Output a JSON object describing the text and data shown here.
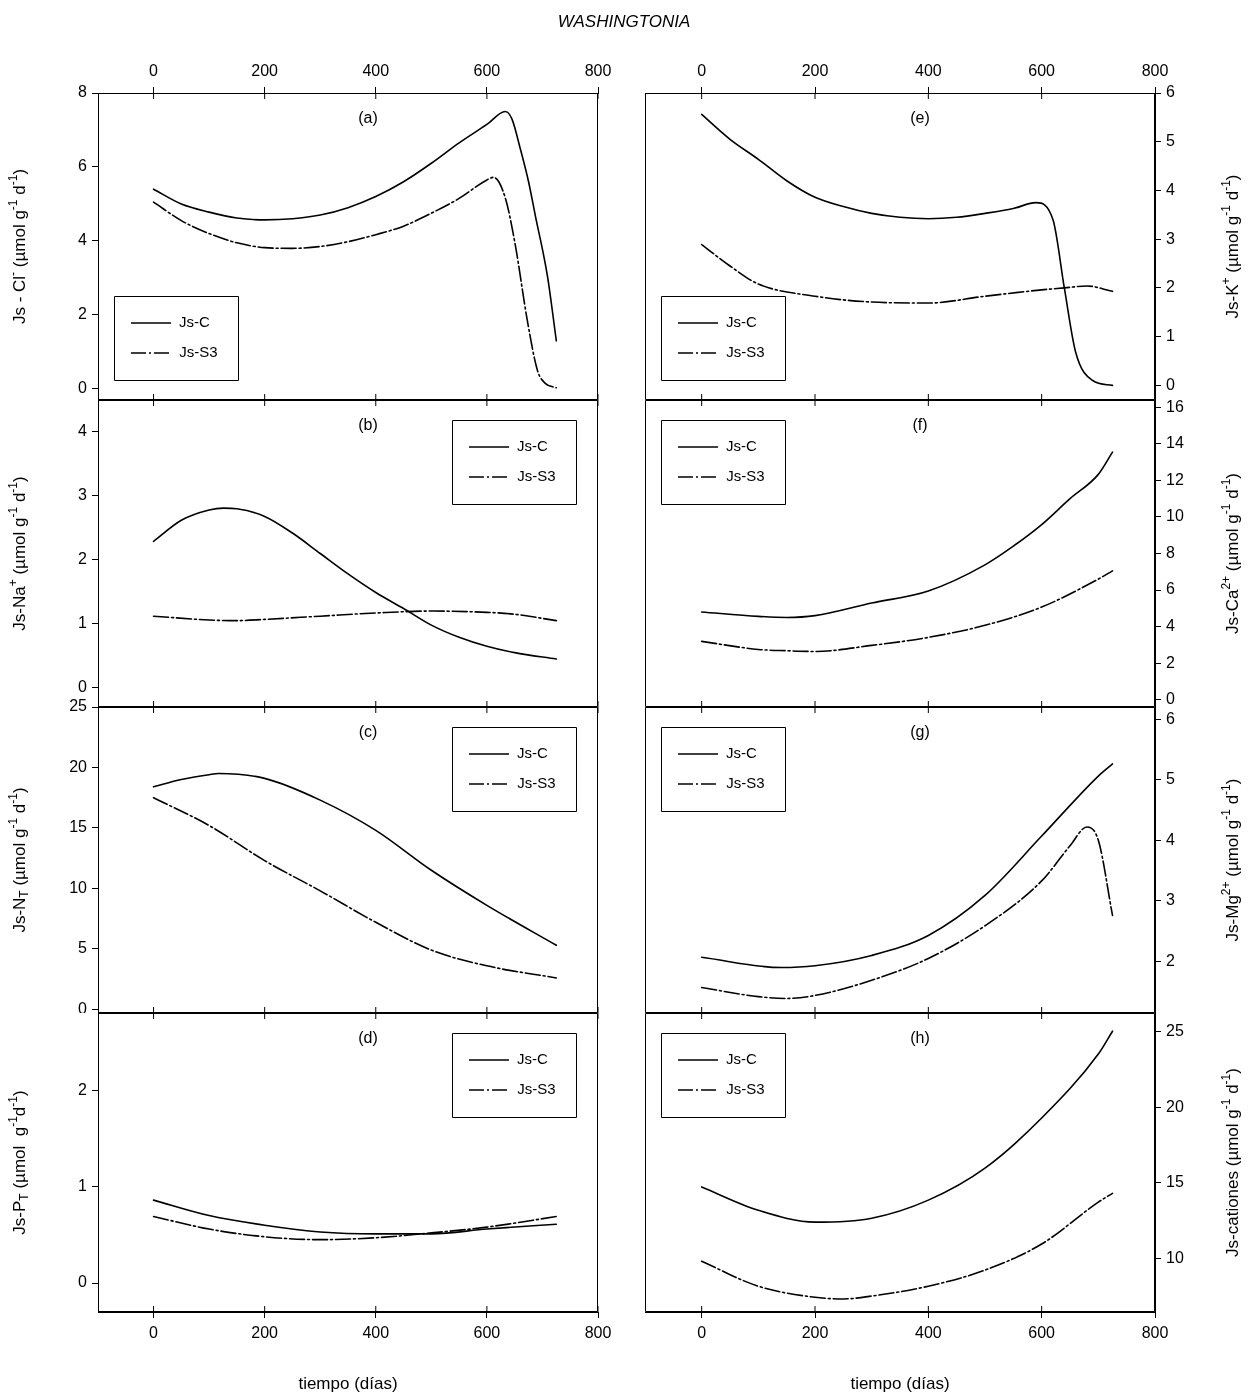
{
  "chart_data": [
    {
      "type": "line",
      "title": "WASHINGTONIA",
      "ylabel": "Js - Cl$^{-}$ (µmol g$^{-1}$ d$^{-1}$)",
      "annotations": [
        "(a)"
      ],
      "xlim": [
        -100,
        800
      ],
      "xticks": [
        0,
        200,
        400,
        600,
        800
      ],
      "x2lim": [
        -100,
        800
      ],
      "x2ticks": [
        0,
        200,
        400,
        600,
        800
      ],
      "tick_labels": "y",
      "ylim": [
        -0.3,
        8
      ],
      "yticks": [
        0,
        2,
        4,
        6,
        8
      ],
      "legend": "bottom left",
      "marker": "none",
      "series": [
        {
          "name": "Js-C",
          "color": "#000000",
          "line_style": "solid",
          "x": [
            0,
            50,
            100,
            150,
            200,
            250,
            300,
            350,
            400,
            450,
            500,
            550,
            600,
            633,
            645,
            660,
            675,
            687,
            709,
            725
          ],
          "values": [
            5.4,
            5.0,
            4.78,
            4.62,
            4.57,
            4.6,
            4.7,
            4.9,
            5.2,
            5.6,
            6.1,
            6.65,
            7.15,
            7.5,
            7.3,
            6.5,
            5.6,
            4.7,
            3.05,
            1.3
          ]
        },
        {
          "name": "Js-S3",
          "color": "#000000",
          "line_style": "dashdot",
          "x": [
            0,
            50,
            100,
            150,
            200,
            250,
            300,
            350,
            400,
            450,
            500,
            550,
            600,
            612,
            633,
            651,
            673,
            691,
            705,
            725
          ],
          "values": [
            5.05,
            4.55,
            4.2,
            3.95,
            3.82,
            3.8,
            3.85,
            3.98,
            4.17,
            4.4,
            4.75,
            5.15,
            5.65,
            5.72,
            5.17,
            3.9,
            1.83,
            0.5,
            0.15,
            0.03
          ]
        }
      ]
    },
    {
      "type": "line",
      "y2label": "Js-K$^{+}$ (µmol g$^{-1}$ d$^{-1}$)",
      "annotations": [
        "(e)"
      ],
      "xlim": [
        -100,
        800
      ],
      "xticks": [
        0,
        200,
        400,
        600,
        800
      ],
      "x2lim": [
        -100,
        800
      ],
      "x2ticks": [
        0,
        200,
        400,
        600,
        800
      ],
      "tick_labels": "y",
      "y2lim": [
        -0.3,
        6
      ],
      "y2ticks": [
        0,
        1,
        2,
        3,
        4,
        5,
        6
      ],
      "legend": "bottom left",
      "marker": "none",
      "series": [
        {
          "name": "Js-C",
          "color": "#000000",
          "line_style": "solid",
          "axis": "y2",
          "x": [
            0,
            50,
            100,
            150,
            200,
            250,
            300,
            350,
            400,
            450,
            500,
            550,
            590,
            620,
            640,
            660,
            690,
            725
          ],
          "values": [
            5.56,
            5.05,
            4.64,
            4.2,
            3.86,
            3.67,
            3.53,
            3.45,
            3.42,
            3.45,
            3.53,
            3.63,
            3.75,
            3.4,
            2.0,
            0.68,
            0.1,
            0.0
          ]
        },
        {
          "name": "Js-S3",
          "color": "#000000",
          "line_style": "dashdot",
          "axis": "y2",
          "x": [
            0,
            50,
            100,
            200,
            300,
            400,
            500,
            600,
            640,
            680,
            725
          ],
          "values": [
            2.89,
            2.45,
            2.08,
            1.83,
            1.71,
            1.69,
            1.83,
            1.96,
            2.0,
            2.04,
            1.93
          ]
        }
      ]
    },
    {
      "type": "line",
      "ylabel": "Js-Na$^{+}$ (µmol g$^{-1}$ d$^{-1}$)",
      "annotations": [
        "(b)"
      ],
      "xlim": [
        -100,
        800
      ],
      "xticks": [
        0,
        200,
        400,
        600,
        800
      ],
      "ylim": [
        -0.3,
        4.5
      ],
      "yticks": [
        0,
        1,
        2,
        3,
        4
      ],
      "legend": "top right",
      "marker": "none",
      "tick_labels": "y",
      "series": [
        {
          "name": "Js-C",
          "color": "#000000",
          "line_style": "solid",
          "x": [
            0,
            50,
            100,
            126,
            150,
            200,
            250,
            300,
            350,
            400,
            450,
            500,
            550,
            600,
            650,
            725
          ],
          "values": [
            2.29,
            2.62,
            2.78,
            2.81,
            2.8,
            2.68,
            2.42,
            2.1,
            1.78,
            1.49,
            1.24,
            0.98,
            0.79,
            0.65,
            0.55,
            0.45
          ]
        },
        {
          "name": "Js-S3",
          "color": "#000000",
          "line_style": "dashdot",
          "x": [
            0,
            100,
            150,
            200,
            300,
            400,
            500,
            600,
            650,
            725
          ],
          "values": [
            1.12,
            1.06,
            1.05,
            1.07,
            1.12,
            1.17,
            1.2,
            1.18,
            1.15,
            1.05
          ]
        }
      ]
    },
    {
      "type": "line",
      "y2label": "Js-Ca$^{2+}$ (µmol g$^{-1}$ d$^{-1}$)",
      "annotations": [
        "(f)"
      ],
      "xlim": [
        -100,
        800
      ],
      "xticks": [
        0,
        200,
        400,
        600,
        800
      ],
      "y2lim": [
        -0.4,
        16.4
      ],
      "y2ticks": [
        0,
        2,
        4,
        6,
        8,
        10,
        12,
        14,
        16
      ],
      "legend": "top left",
      "marker": "none",
      "tick_labels": "y",
      "series": [
        {
          "name": "Js-C",
          "color": "#000000",
          "line_style": "solid",
          "axis": "y2",
          "x": [
            0,
            100,
            150,
            200,
            300,
            400,
            500,
            550,
            600,
            650,
            700,
            725
          ],
          "values": [
            4.8,
            4.56,
            4.5,
            4.6,
            5.29,
            5.95,
            7.38,
            8.4,
            9.58,
            11.0,
            12.33,
            13.55
          ]
        },
        {
          "name": "Js-S3",
          "color": "#000000",
          "line_style": "dashdot",
          "axis": "y2",
          "x": [
            0,
            100,
            150,
            200,
            300,
            400,
            500,
            600,
            700,
            725
          ],
          "values": [
            3.19,
            2.75,
            2.68,
            2.64,
            2.97,
            3.41,
            4.07,
            5.07,
            6.6,
            7.05
          ]
        }
      ]
    },
    {
      "type": "line",
      "ylabel": "Js-N$_{T}$ (µmol g$^{-1}$ d$^{-1}$)",
      "annotations": [
        "(c)"
      ],
      "xlim": [
        -100,
        800
      ],
      "xticks": [
        0,
        200,
        400,
        600,
        800
      ],
      "ylim": [
        -0.3,
        25
      ],
      "yticks": [
        0,
        5,
        10,
        15,
        20,
        25
      ],
      "legend": "top right",
      "marker": "none",
      "tick_labels": "y",
      "series": [
        {
          "name": "Js-C",
          "color": "#000000",
          "line_style": "solid",
          "x": [
            0,
            50,
            100,
            117,
            200,
            300,
            400,
            500,
            600,
            725
          ],
          "values": [
            18.4,
            19.0,
            19.4,
            19.5,
            19.1,
            17.3,
            14.8,
            11.5,
            8.6,
            5.3
          ]
        },
        {
          "name": "Js-S3",
          "color": "#000000",
          "line_style": "dashdot",
          "x": [
            0,
            100,
            200,
            300,
            400,
            500,
            600,
            725
          ],
          "values": [
            17.5,
            15.2,
            12.3,
            9.8,
            7.2,
            4.9,
            3.6,
            2.6
          ]
        }
      ]
    },
    {
      "type": "line",
      "y2label": "Js-Mg$^{2+}$ (µmol g$^{-1}$ d$^{-1}$)",
      "annotations": [
        "(g)"
      ],
      "xlim": [
        -100,
        800
      ],
      "xticks": [
        0,
        200,
        400,
        600,
        800
      ],
      "y2lim": [
        1.15,
        6.2
      ],
      "y2ticks": [
        2,
        3,
        4,
        5,
        6
      ],
      "legend": "top left",
      "marker": "none",
      "tick_labels": "y",
      "series": [
        {
          "name": "Js-C",
          "color": "#000000",
          "line_style": "solid",
          "axis": "y2",
          "x": [
            0,
            140,
            200,
            300,
            400,
            500,
            600,
            700,
            725
          ],
          "values": [
            2.07,
            1.9,
            1.93,
            2.1,
            2.43,
            3.09,
            4.07,
            5.06,
            5.26
          ]
        },
        {
          "name": "Js-S3",
          "color": "#000000",
          "line_style": "dashdot",
          "axis": "y2",
          "x": [
            0,
            100,
            150,
            200,
            300,
            400,
            500,
            600,
            650,
            680,
            700,
            725
          ],
          "values": [
            1.57,
            1.42,
            1.39,
            1.44,
            1.69,
            2.05,
            2.59,
            3.33,
            3.91,
            4.22,
            4.0,
            2.76
          ]
        }
      ]
    },
    {
      "type": "line",
      "ylabel": "Js-P$_{T}$ (µmol  g$^{-1}$d$^{-1}$)",
      "xlabel": "tiempo (días)",
      "annotations": [
        "(d)"
      ],
      "xlim": [
        -100,
        800
      ],
      "xticks": [
        0,
        200,
        400,
        600,
        800
      ],
      "ylim": [
        -0.3,
        2.8
      ],
      "yticks": [
        0,
        1,
        2
      ],
      "legend": "top right",
      "marker": "none",
      "series": [
        {
          "name": "Js-C",
          "color": "#000000",
          "line_style": "solid",
          "x": [
            0,
            100,
            200,
            300,
            400,
            500,
            600,
            725
          ],
          "values": [
            0.86,
            0.7,
            0.6,
            0.53,
            0.51,
            0.51,
            0.56,
            0.61
          ]
        },
        {
          "name": "Js-S3",
          "color": "#000000",
          "line_style": "dashdot",
          "x": [
            0,
            100,
            200,
            300,
            400,
            500,
            600,
            725
          ],
          "values": [
            0.69,
            0.56,
            0.48,
            0.45,
            0.47,
            0.52,
            0.58,
            0.69
          ]
        }
      ]
    },
    {
      "type": "line",
      "y2label": "Js-cationes (µmol g$^{-1}$ d$^{-1}$)",
      "xlabel": "tiempo (días)",
      "annotations": [
        "(h)"
      ],
      "xlim": [
        -100,
        800
      ],
      "xticks": [
        0,
        200,
        400,
        600,
        800
      ],
      "y2lim": [
        6.5,
        26.2
      ],
      "y2ticks": [
        10,
        15,
        20,
        25
      ],
      "legend": "top left",
      "marker": "none",
      "series": [
        {
          "name": "Js-C",
          "color": "#000000",
          "line_style": "solid",
          "axis": "y2",
          "x": [
            0,
            100,
            200,
            300,
            400,
            500,
            600,
            700,
            725
          ],
          "values": [
            14.74,
            13.2,
            12.42,
            12.68,
            13.87,
            15.98,
            19.28,
            23.5,
            25.0
          ]
        },
        {
          "name": "Js-S3",
          "color": "#000000",
          "line_style": "dashdot",
          "axis": "y2",
          "x": [
            0,
            100,
            200,
            250,
            300,
            400,
            500,
            600,
            700,
            725
          ],
          "values": [
            9.84,
            8.2,
            7.47,
            7.36,
            7.55,
            8.2,
            9.26,
            10.98,
            13.74,
            14.32
          ]
        }
      ]
    }
  ]
}
